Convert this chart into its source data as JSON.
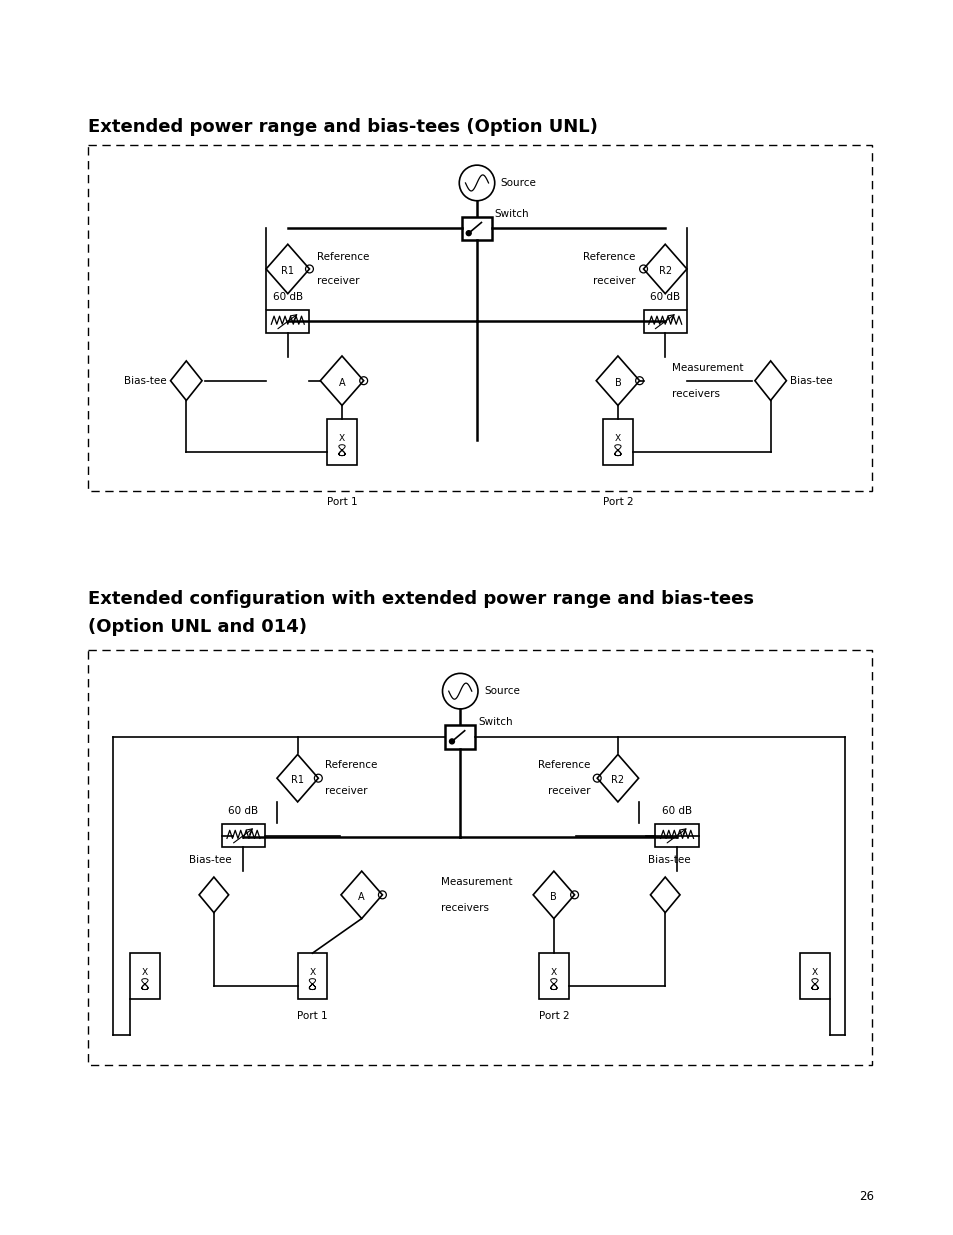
{
  "page_bg": "#ffffff",
  "title1": "Extended power range and bias-tees (Option UNL)",
  "title2_line1": "Extended configuration with extended power range and bias-tees",
  "title2_line2": "(Option UNL and 014)",
  "title_fontsize": 13,
  "page_number": "26",
  "lw": 1.2,
  "lw_thick": 1.8,
  "fs_label": 7.5,
  "fs_small": 7.0
}
